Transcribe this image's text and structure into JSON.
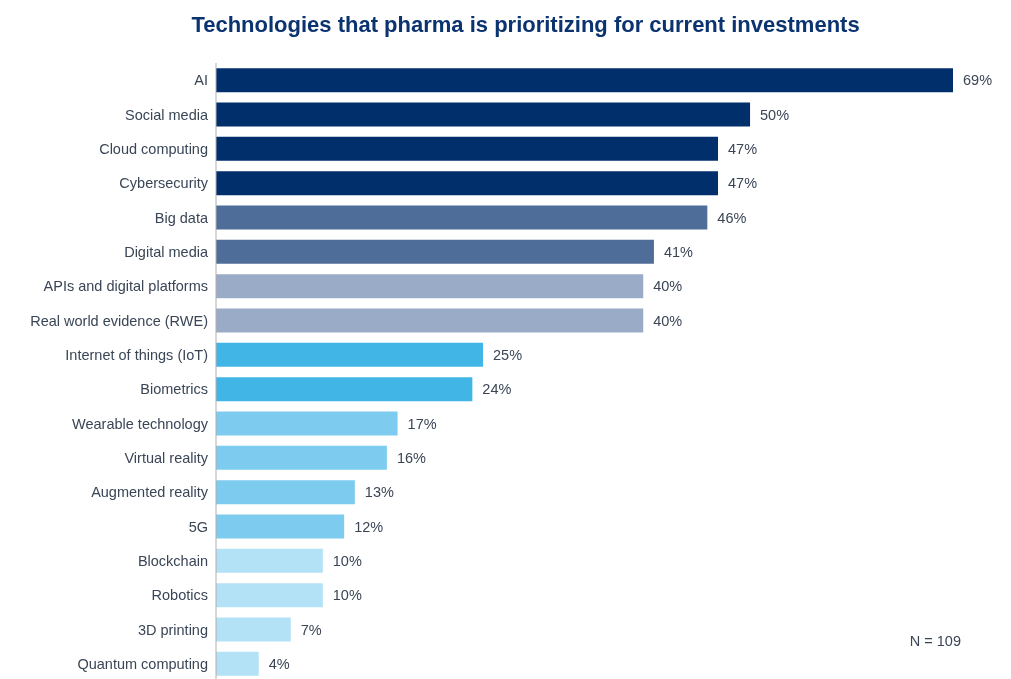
{
  "chart_data": {
    "type": "bar",
    "orientation": "horizontal",
    "title": "Technologies that pharma is prioritizing for current investments",
    "categories": [
      "AI",
      "Social media",
      "Cloud computing",
      "Cybersecurity",
      "Big data",
      "Digital media",
      "APIs and digital platforms",
      "Real world evidence (RWE)",
      "Internet of things (IoT)",
      "Biometrics",
      "Wearable technology",
      "Virtual reality",
      "Augmented reality",
      "5G",
      "Blockchain",
      "Robotics",
      "3D printing",
      "Quantum computing"
    ],
    "values": [
      69,
      50,
      47,
      47,
      46,
      41,
      40,
      40,
      25,
      24,
      17,
      16,
      13,
      12,
      10,
      10,
      7,
      4
    ],
    "value_labels": [
      "69%",
      "50%",
      "47%",
      "47%",
      "46%",
      "41%",
      "40%",
      "40%",
      "25%",
      "24%",
      "17%",
      "16%",
      "13%",
      "12%",
      "10%",
      "10%",
      "7%",
      "4%"
    ],
    "colors": [
      "#002f6c",
      "#002f6c",
      "#002f6c",
      "#002f6c",
      "#4f6d99",
      "#4f6d99",
      "#9aabc8",
      "#9aabc8",
      "#41b6e6",
      "#41b6e6",
      "#7dcbee",
      "#7dcbee",
      "#7dcbee",
      "#7dcbee",
      "#b3e1f5",
      "#b3e1f5",
      "#b3e1f5",
      "#b3e1f5"
    ],
    "annotations": [
      "N = 109"
    ]
  }
}
